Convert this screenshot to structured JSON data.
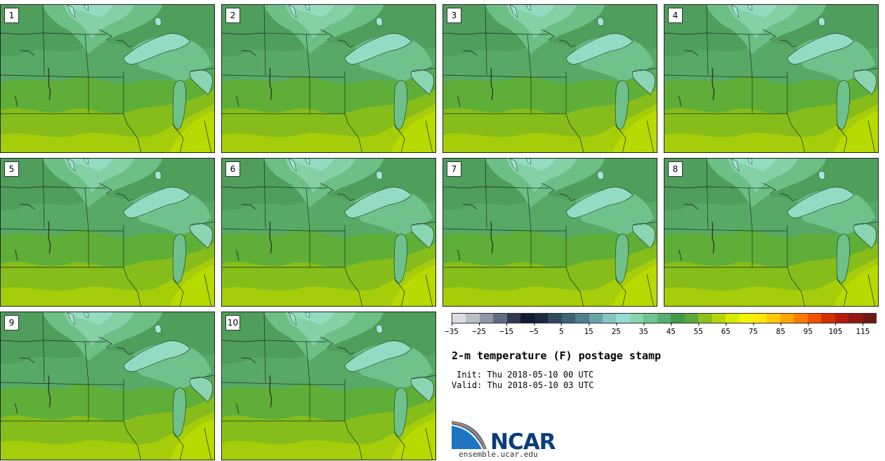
{
  "panels": [
    {
      "label": "1"
    },
    {
      "label": "2"
    },
    {
      "label": "3"
    },
    {
      "label": "4"
    },
    {
      "label": "5"
    },
    {
      "label": "6"
    },
    {
      "label": "7"
    },
    {
      "label": "8"
    },
    {
      "label": "9"
    },
    {
      "label": "10"
    }
  ],
  "colorbar": {
    "colors": [
      "#d9dde3",
      "#b9bfc8",
      "#8e97a5",
      "#626c80",
      "#2f3a52",
      "#121a30",
      "#1b2a3e",
      "#2f4a5c",
      "#3e6374",
      "#4f7f8c",
      "#6aa3a8",
      "#86c4c2",
      "#95ddd3",
      "#86d4b0",
      "#6fc48f",
      "#57b072",
      "#3f9a48",
      "#5aa73a",
      "#8fbf19",
      "#b6d600",
      "#d8ea00",
      "#f3f300",
      "#ffe800",
      "#ffc800",
      "#ffa300",
      "#ff7a00",
      "#f25200",
      "#d23000",
      "#b81c0c",
      "#951712",
      "#6e1a10"
    ],
    "ticks": [
      "−35",
      "−25",
      "−15",
      "−5",
      "5",
      "15",
      "25",
      "35",
      "45",
      "55",
      "65",
      "75",
      "85",
      "95",
      "105",
      "115"
    ]
  },
  "title": "2-m temperature (F) postage stamp",
  "init": "Init: Thu 2018-05-10 00 UTC",
  "valid": "Valid: Thu 2018-05-10 03 UTC",
  "logo_text": "NCAR",
  "url": "ensemble.ucar.edu"
}
